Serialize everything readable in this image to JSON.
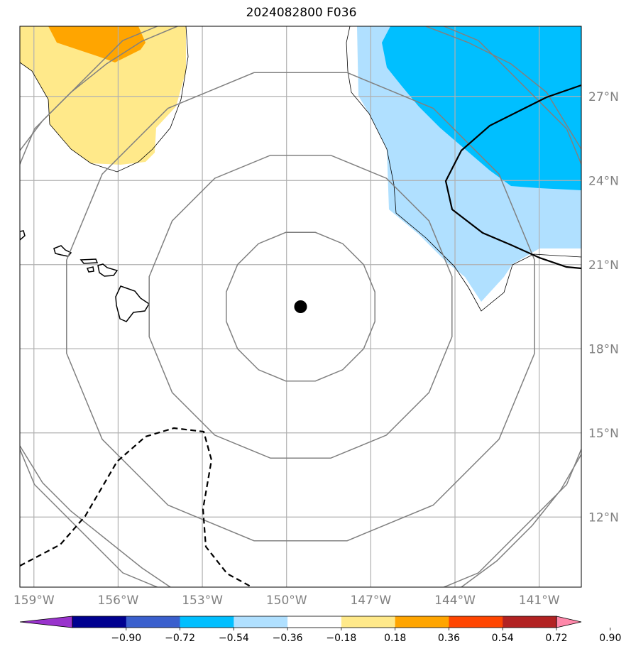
{
  "title": "2024082800 F036",
  "map": {
    "lon_range": [
      -159.5,
      -139.5
    ],
    "lat_range": [
      9.5,
      29.5
    ],
    "lon_ticks": [
      {
        "value": -159,
        "label": "159°W"
      },
      {
        "value": -156,
        "label": "156°W"
      },
      {
        "value": -153,
        "label": "153°W"
      },
      {
        "value": -150,
        "label": "150°W"
      },
      {
        "value": -147,
        "label": "147°W"
      },
      {
        "value": -144,
        "label": "144°W"
      },
      {
        "value": -141,
        "label": "141°W"
      }
    ],
    "lat_ticks": [
      {
        "value": 27,
        "label": "27°N"
      },
      {
        "value": 24,
        "label": "24°N"
      },
      {
        "value": 21,
        "label": "21°N"
      },
      {
        "value": 18,
        "label": "18°N"
      },
      {
        "value": 15,
        "label": "15°N"
      },
      {
        "value": 12,
        "label": "12°N"
      }
    ],
    "center_marker": {
      "lon": -149.5,
      "lat": 19.5
    },
    "range_rings_radius_deg": [
      2.7,
      5.5,
      8.5,
      11.4
    ],
    "colors": {
      "grid": "#b0b0b0",
      "ring": "#808080",
      "coast": "#000000",
      "marker": "#000000"
    }
  },
  "colorbar": {
    "colors": [
      "#9933cc",
      "#000090",
      "#3a5fcd",
      "#00bfff",
      "#b0e0ff",
      "#ffffff",
      "#ffe98a",
      "#ffa500",
      "#ff4500",
      "#b22222",
      "#ff88aa"
    ],
    "labels": [
      "−0.90",
      "−0.72",
      "−0.54",
      "−0.36",
      "−0.18",
      "0.18",
      "0.36",
      "0.54",
      "0.72",
      "0.90"
    ]
  }
}
